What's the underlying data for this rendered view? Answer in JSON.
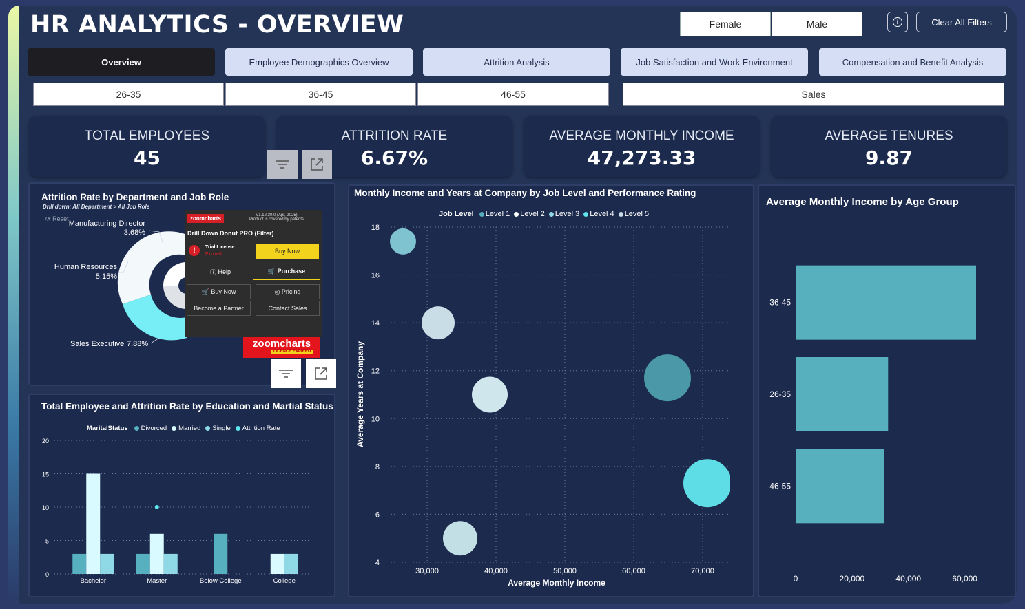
{
  "header": {
    "title": "HR ANALYTICS - OVERVIEW",
    "gender_filters": [
      "Female",
      "Male"
    ],
    "clear_label": "Clear All Filters"
  },
  "tabs": [
    {
      "label": "Overview",
      "active": true
    },
    {
      "label": "Employee Demographics Overview",
      "active": false
    },
    {
      "label": "Attrition Analysis",
      "active": false
    },
    {
      "label": "Job Satisfaction and Work Environment",
      "active": false
    },
    {
      "label": "Compensation and Benefit Analysis",
      "active": false
    }
  ],
  "age_filters": [
    "26-35",
    "36-45",
    "46-55"
  ],
  "department_filter": "Sales",
  "kpis": [
    {
      "label": "TOTAL EMPLOYEES",
      "value": "45"
    },
    {
      "label": "ATTRITION RATE",
      "value": "6.67%"
    },
    {
      "label": "AVERAGE MONTHLY INCOME",
      "value": "47,273.33"
    },
    {
      "label": "AVERAGE TENURES",
      "value": "9.87"
    }
  ],
  "donut": {
    "title": "Attrition Rate by Department and Job Role",
    "subtitle": "Drill down: All Department > All Job Role",
    "reset": "Reset",
    "labels": [
      {
        "name": "Manufacturing Director",
        "value": "3.68%"
      },
      {
        "name": "Human Resources",
        "value": "5.15%"
      },
      {
        "name": "Sales Executive",
        "value": "7.88%"
      }
    ],
    "popup": {
      "brand": "zoomcharts",
      "version": "V1.12.30.0 (Apr, 2025)",
      "patent": "Product is covered by patents",
      "product": "Drill Down Donut PRO (Filter)",
      "license": "Trial License",
      "expired": "Expired",
      "buy_now": "Buy Now",
      "help": "Help",
      "purchase": "Purchase",
      "buy_now2": "Buy Now",
      "pricing": "Pricing",
      "partner": "Become a Partner",
      "contact": "Contact Sales",
      "badge": "zoomcharts",
      "badge_sub": "LICENCE EXPIRED"
    }
  },
  "chart_data": [
    {
      "type": "bar",
      "title": "Total Employee and Attrition Rate by Education and Martial Status",
      "legend_title": "MaritalStatus",
      "legend": [
        "Divorced",
        "Married",
        "Single",
        "Attrition Rate"
      ],
      "categories": [
        "Bachelor",
        "Master",
        "Below College",
        "College"
      ],
      "ylim": [
        0,
        20
      ],
      "yticks": [
        "0",
        "5",
        "10",
        "15",
        "20"
      ],
      "series": [
        {
          "name": "Divorced",
          "values": [
            3,
            3,
            6,
            0
          ]
        },
        {
          "name": "Married",
          "values": [
            15,
            6,
            0,
            3
          ]
        },
        {
          "name": "Single",
          "values": [
            3,
            3,
            0,
            3
          ]
        }
      ],
      "attrition_marker": {
        "category": "Master",
        "value": 10
      },
      "colors": {
        "Divorced": "#56b0c0",
        "Married": "#d9fbff",
        "Single": "#8fd9e6",
        "Attrition Rate": "#5ee6ef"
      }
    },
    {
      "type": "scatter",
      "title": "Monthly Income and Years at Company by Job Level and Performance Rating",
      "legend_title": "Job Level",
      "legend": [
        "Level 1",
        "Level 2",
        "Level 3",
        "Level 4",
        "Level 5"
      ],
      "xlabel": "Average Monthly Income",
      "ylabel": "Average Years at Company",
      "xlim": [
        24000,
        74000
      ],
      "ylim": [
        4,
        18
      ],
      "xticks": [
        "30,000",
        "40,000",
        "50,000",
        "60,000",
        "70,000"
      ],
      "yticks": [
        "4",
        "6",
        "8",
        "10",
        "12",
        "14",
        "16",
        "18"
      ],
      "points": [
        {
          "x": 26500,
          "y": 17.4,
          "color": "#7fc2d0"
        },
        {
          "x": 31600,
          "y": 14.0,
          "color": "#c8dde6"
        },
        {
          "x": 39100,
          "y": 11.0,
          "color": "#cfe6ec"
        },
        {
          "x": 34800,
          "y": 5.0,
          "color": "#c3dfe6"
        },
        {
          "x": 64900,
          "y": 11.7,
          "color": "#4a98a8"
        },
        {
          "x": 70700,
          "y": 7.3,
          "color": "#5fdde6"
        }
      ]
    },
    {
      "type": "bar",
      "orientation": "horizontal",
      "title": "Average Monthly Income by Age Group",
      "categories": [
        "36-45",
        "26-35",
        "46-55"
      ],
      "values": [
        64000,
        32800,
        31500
      ],
      "xlim": [
        0,
        64000
      ],
      "xticks": [
        "0",
        "20,000",
        "40,000",
        "60,000"
      ],
      "color": "#56b0be"
    }
  ]
}
